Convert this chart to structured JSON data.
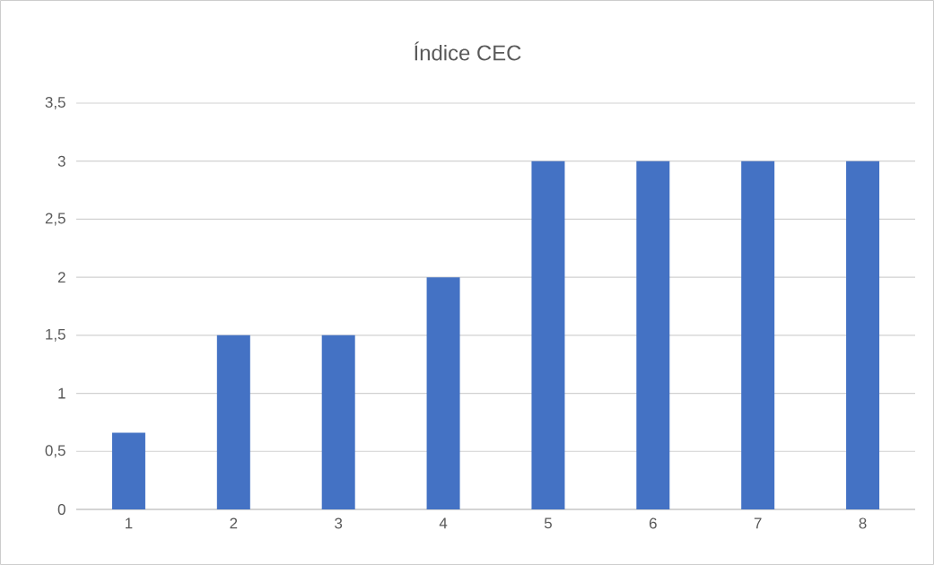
{
  "chart_data": {
    "type": "bar",
    "title": "Índice CEC",
    "categories": [
      "1",
      "2",
      "3",
      "4",
      "5",
      "6",
      "7",
      "8"
    ],
    "values": [
      0.66,
      1.5,
      1.5,
      2,
      3,
      3,
      3,
      3
    ],
    "color": "#4472c4",
    "ylim": [
      0,
      3.5
    ],
    "yticks": [
      0,
      {
        "value": 0.5,
        "label": "0,5"
      },
      1,
      {
        "value": 1.5,
        "label": "1,5"
      },
      2,
      {
        "value": 2.5,
        "label": "2,5"
      },
      3,
      {
        "value": 3.5,
        "label": "3,5"
      }
    ],
    "grid": "y"
  }
}
